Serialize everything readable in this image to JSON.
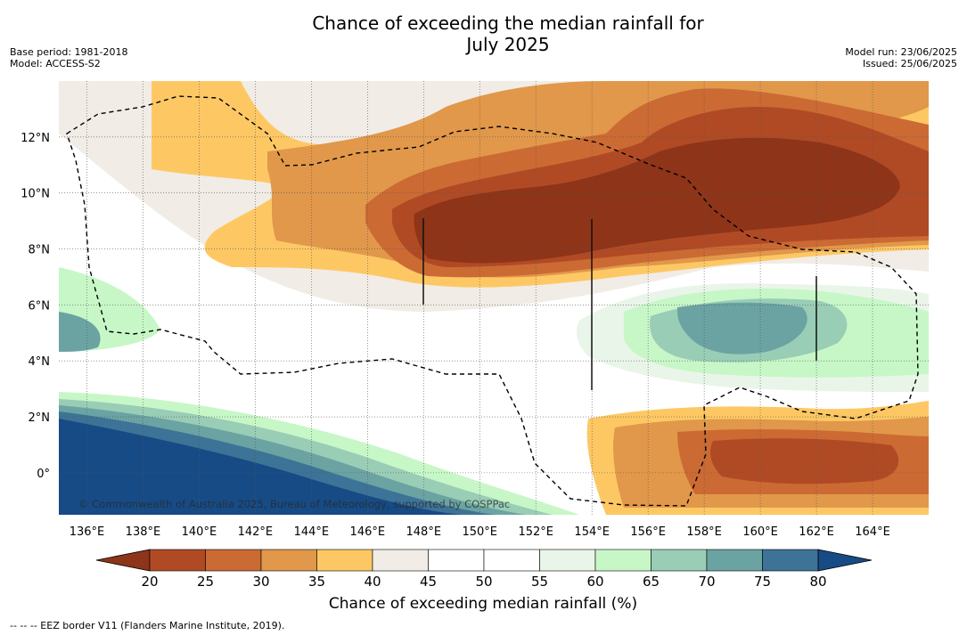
{
  "title_line1": "Chance of exceeding the median rainfall for",
  "title_line2": "July 2025",
  "base_period": "Base period: 1981-2018",
  "model": "Model: ACCESS-S2",
  "model_run": "Model run: 23/06/2025",
  "issued": "Issued: 25/06/2025",
  "copyright": "© Commonwealth of Australia 2025, Bureau of Meteorology, supported by COSPPac",
  "footnote": "-- -- -- EEZ border V11 (Flanders Marine Institute, 2019).",
  "colorbar": {
    "label": "Chance of exceeding median rainfall (%)",
    "ticks": [
      "20",
      "25",
      "30",
      "35",
      "40",
      "45",
      "50",
      "55",
      "60",
      "65",
      "70",
      "75",
      "80"
    ],
    "colors": [
      "#8e3418",
      "#b04a25",
      "#cc6a34",
      "#e1984a",
      "#fdc864",
      "#f1ece6",
      "#ffffff",
      "#ffffff",
      "#e9f5e9",
      "#c7f7c7",
      "#99cdb6",
      "#6ba3a3",
      "#3d7396",
      "#174b86"
    ]
  },
  "map": {
    "lon_range": [
      135,
      166
    ],
    "lat_range": [
      -1.5,
      14
    ],
    "lon_ticks": [
      "136°E",
      "138°E",
      "140°E",
      "142°E",
      "144°E",
      "146°E",
      "148°E",
      "150°E",
      "152°E",
      "154°E",
      "156°E",
      "158°E",
      "160°E",
      "162°E",
      "164°E"
    ],
    "lat_ticks": [
      "12°N",
      "10°N",
      "8°N",
      "6°N",
      "4°N",
      "2°N",
      "0°"
    ]
  }
}
